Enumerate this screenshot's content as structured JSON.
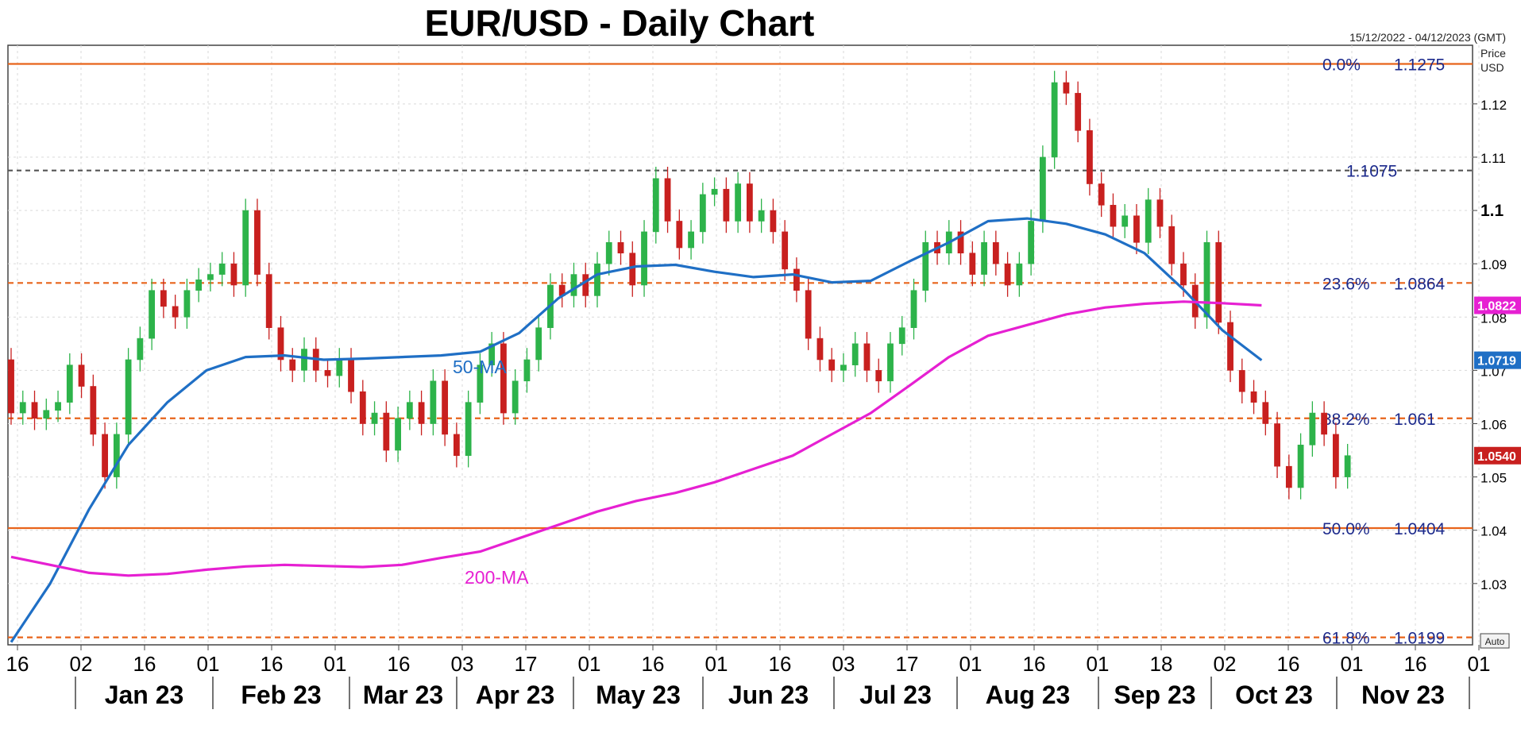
{
  "header": {
    "title": "EUR/USD - Daily Chart",
    "date_range": "15/12/2022 - 04/12/2023 (GMT)",
    "price_label_1": "Price",
    "price_label_2": "USD",
    "auto_label": "Auto"
  },
  "colors": {
    "bull": "#2db34a",
    "bear": "#c8201f",
    "ma50": "#1f6fc5",
    "ma200": "#e620d2",
    "fib_solid": "#e8631a",
    "fib_dashed": "#e8631a",
    "resistance": "#555555",
    "fib_text": "#1c2a8c",
    "grid": "#d9d9d9"
  },
  "chart_data": {
    "type": "candlestick",
    "title": "EUR/USD - Daily Chart",
    "ylim": [
      1.0185,
      1.131
    ],
    "y_ticks": [
      "1.12",
      "1.11",
      "1.1",
      "1.09",
      "1.08",
      "1.07",
      "1.06",
      "1.05",
      "1.04",
      "1.03"
    ],
    "y_ticks_bold": [
      "1.1"
    ],
    "x_ticks": [
      "16",
      "02",
      "16",
      "01",
      "16",
      "01",
      "16",
      "03",
      "17",
      "01",
      "16",
      "01",
      "16",
      "03",
      "17",
      "01",
      "16",
      "01",
      "18",
      "02",
      "16",
      "01",
      "16",
      "01"
    ],
    "months": [
      "Jan 23",
      "Feb 23",
      "Mar 23",
      "Apr 23",
      "May 23",
      "Jun 23",
      "Jul 23",
      "Aug 23",
      "Sep 23",
      "Oct 23",
      "Nov 23"
    ],
    "fib_levels": [
      {
        "pct": "0.0%",
        "price": "1.1275",
        "value": 1.1275,
        "style": "solid"
      },
      {
        "pct": "23.6%",
        "price": "1.0864",
        "value": 1.0864,
        "style": "dashed"
      },
      {
        "pct": "38.2%",
        "price": "1.061",
        "value": 1.061,
        "style": "dashed"
      },
      {
        "pct": "50.0%",
        "price": "1.0404",
        "value": 1.0404,
        "style": "solid"
      },
      {
        "pct": "61.8%",
        "price": "1.0199",
        "value": 1.0199,
        "style": "dashed"
      }
    ],
    "resistance": {
      "label": "1.1075",
      "value": 1.1075
    },
    "current_tags": [
      {
        "label": "1.0822",
        "value": 1.0822,
        "series": "200-MA"
      },
      {
        "label": "1.0719",
        "value": 1.0719,
        "series": "50-MA"
      },
      {
        "label": "1.0540",
        "value": 1.054,
        "series": "price"
      }
    ],
    "series": [
      {
        "name": "50-MA",
        "values": [
          [
            0,
            1.019
          ],
          [
            10,
            1.03
          ],
          [
            20,
            1.044
          ],
          [
            30,
            1.056
          ],
          [
            40,
            1.064
          ],
          [
            50,
            1.07
          ],
          [
            60,
            1.0725
          ],
          [
            70,
            1.0728
          ],
          [
            80,
            1.072
          ],
          [
            90,
            1.0722
          ],
          [
            100,
            1.0725
          ],
          [
            110,
            1.0728
          ],
          [
            120,
            1.0735
          ],
          [
            130,
            1.077
          ],
          [
            140,
            1.0835
          ],
          [
            150,
            1.088
          ],
          [
            160,
            1.0895
          ],
          [
            170,
            1.0898
          ],
          [
            180,
            1.0885
          ],
          [
            190,
            1.0875
          ],
          [
            200,
            1.088
          ],
          [
            210,
            1.0865
          ],
          [
            220,
            1.0868
          ],
          [
            230,
            1.0905
          ],
          [
            240,
            1.094
          ],
          [
            250,
            1.098
          ],
          [
            260,
            1.0985
          ],
          [
            270,
            1.0975
          ],
          [
            280,
            1.0955
          ],
          [
            290,
            1.092
          ],
          [
            300,
            1.0852
          ],
          [
            310,
            1.0775
          ],
          [
            320,
            1.0719
          ]
        ]
      },
      {
        "name": "200-MA",
        "values": [
          [
            0,
            1.035
          ],
          [
            10,
            1.0335
          ],
          [
            20,
            1.032
          ],
          [
            30,
            1.0315
          ],
          [
            40,
            1.0318
          ],
          [
            50,
            1.0326
          ],
          [
            60,
            1.0332
          ],
          [
            70,
            1.0335
          ],
          [
            80,
            1.0333
          ],
          [
            90,
            1.0331
          ],
          [
            100,
            1.0335
          ],
          [
            110,
            1.0348
          ],
          [
            120,
            1.036
          ],
          [
            130,
            1.0385
          ],
          [
            140,
            1.041
          ],
          [
            150,
            1.0435
          ],
          [
            160,
            1.0455
          ],
          [
            170,
            1.047
          ],
          [
            180,
            1.049
          ],
          [
            190,
            1.0515
          ],
          [
            200,
            1.054
          ],
          [
            210,
            1.058
          ],
          [
            220,
            1.062
          ],
          [
            230,
            1.0672
          ],
          [
            240,
            1.0725
          ],
          [
            250,
            1.0765
          ],
          [
            260,
            1.0785
          ],
          [
            270,
            1.0805
          ],
          [
            280,
            1.0818
          ],
          [
            290,
            1.0825
          ],
          [
            300,
            1.0829
          ],
          [
            310,
            1.0826
          ],
          [
            320,
            1.0822
          ]
        ]
      }
    ],
    "candles": [
      [
        0,
        1.072,
        1.062
      ],
      [
        3,
        1.062,
        1.064
      ],
      [
        6,
        1.064,
        1.061
      ],
      [
        9,
        1.061,
        1.0625
      ],
      [
        12,
        1.0625,
        1.064
      ],
      [
        15,
        1.064,
        1.071
      ],
      [
        18,
        1.071,
        1.067
      ],
      [
        21,
        1.067,
        1.058
      ],
      [
        24,
        1.058,
        1.05
      ],
      [
        27,
        1.05,
        1.058
      ],
      [
        30,
        1.058,
        1.072
      ],
      [
        33,
        1.072,
        1.076
      ],
      [
        36,
        1.076,
        1.085
      ],
      [
        39,
        1.085,
        1.082
      ],
      [
        42,
        1.082,
        1.08
      ],
      [
        45,
        1.08,
        1.085
      ],
      [
        48,
        1.085,
        1.087
      ],
      [
        51,
        1.087,
        1.088
      ],
      [
        54,
        1.088,
        1.09
      ],
      [
        57,
        1.09,
        1.086
      ],
      [
        60,
        1.086,
        1.1
      ],
      [
        63,
        1.1,
        1.088
      ],
      [
        66,
        1.088,
        1.078
      ],
      [
        69,
        1.078,
        1.072
      ],
      [
        72,
        1.072,
        1.07
      ],
      [
        75,
        1.07,
        1.074
      ],
      [
        78,
        1.074,
        1.07
      ],
      [
        81,
        1.07,
        1.069
      ],
      [
        84,
        1.069,
        1.072
      ],
      [
        87,
        1.072,
        1.066
      ],
      [
        90,
        1.066,
        1.06
      ],
      [
        93,
        1.06,
        1.062
      ],
      [
        96,
        1.062,
        1.055
      ],
      [
        99,
        1.055,
        1.061
      ],
      [
        102,
        1.061,
        1.064
      ],
      [
        105,
        1.064,
        1.06
      ],
      [
        108,
        1.06,
        1.068
      ],
      [
        111,
        1.068,
        1.058
      ],
      [
        114,
        1.058,
        1.054
      ],
      [
        117,
        1.054,
        1.064
      ],
      [
        120,
        1.064,
        1.071
      ],
      [
        123,
        1.071,
        1.075
      ],
      [
        126,
        1.075,
        1.062
      ],
      [
        129,
        1.062,
        1.068
      ],
      [
        132,
        1.068,
        1.072
      ],
      [
        135,
        1.072,
        1.078
      ],
      [
        138,
        1.078,
        1.086
      ],
      [
        141,
        1.086,
        1.084
      ],
      [
        144,
        1.084,
        1.088
      ],
      [
        147,
        1.088,
        1.084
      ],
      [
        150,
        1.084,
        1.09
      ],
      [
        153,
        1.09,
        1.094
      ],
      [
        156,
        1.094,
        1.092
      ],
      [
        159,
        1.092,
        1.086
      ],
      [
        162,
        1.086,
        1.096
      ],
      [
        165,
        1.096,
        1.106
      ],
      [
        168,
        1.106,
        1.098
      ],
      [
        171,
        1.098,
        1.093
      ],
      [
        174,
        1.093,
        1.096
      ],
      [
        177,
        1.096,
        1.103
      ],
      [
        180,
        1.103,
        1.104
      ],
      [
        183,
        1.104,
        1.098
      ],
      [
        186,
        1.098,
        1.105
      ],
      [
        189,
        1.105,
        1.098
      ],
      [
        192,
        1.098,
        1.1
      ],
      [
        195,
        1.1,
        1.096
      ],
      [
        198,
        1.096,
        1.089
      ],
      [
        201,
        1.089,
        1.085
      ],
      [
        204,
        1.085,
        1.076
      ],
      [
        207,
        1.076,
        1.072
      ],
      [
        210,
        1.072,
        1.07
      ],
      [
        213,
        1.07,
        1.071
      ],
      [
        216,
        1.071,
        1.075
      ],
      [
        219,
        1.075,
        1.07
      ],
      [
        222,
        1.07,
        1.068
      ],
      [
        225,
        1.068,
        1.075
      ],
      [
        228,
        1.075,
        1.078
      ],
      [
        231,
        1.078,
        1.085
      ],
      [
        234,
        1.085,
        1.094
      ],
      [
        237,
        1.094,
        1.092
      ],
      [
        240,
        1.092,
        1.096
      ],
      [
        243,
        1.096,
        1.092
      ],
      [
        246,
        1.092,
        1.088
      ],
      [
        249,
        1.088,
        1.094
      ],
      [
        252,
        1.094,
        1.09
      ],
      [
        255,
        1.09,
        1.086
      ],
      [
        258,
        1.086,
        1.09
      ],
      [
        261,
        1.09,
        1.098
      ],
      [
        264,
        1.098,
        1.11
      ],
      [
        267,
        1.11,
        1.124
      ],
      [
        270,
        1.124,
        1.122
      ],
      [
        273,
        1.122,
        1.115
      ],
      [
        276,
        1.115,
        1.105
      ],
      [
        279,
        1.105,
        1.101
      ],
      [
        282,
        1.101,
        1.097
      ],
      [
        285,
        1.097,
        1.099
      ],
      [
        288,
        1.099,
        1.094
      ],
      [
        291,
        1.094,
        1.102
      ],
      [
        294,
        1.102,
        1.097
      ],
      [
        297,
        1.097,
        1.09
      ],
      [
        300,
        1.09,
        1.086
      ],
      [
        303,
        1.086,
        1.08
      ],
      [
        306,
        1.08,
        1.094
      ],
      [
        309,
        1.094,
        1.079
      ],
      [
        312,
        1.079,
        1.07
      ],
      [
        315,
        1.07,
        1.066
      ],
      [
        318,
        1.066,
        1.064
      ],
      [
        321,
        1.064,
        1.06
      ],
      [
        324,
        1.06,
        1.052
      ],
      [
        327,
        1.052,
        1.048
      ],
      [
        330,
        1.048,
        1.056
      ],
      [
        333,
        1.056,
        1.062
      ],
      [
        336,
        1.062,
        1.058
      ],
      [
        339,
        1.058,
        1.05
      ],
      [
        342,
        1.05,
        1.054
      ]
    ]
  }
}
